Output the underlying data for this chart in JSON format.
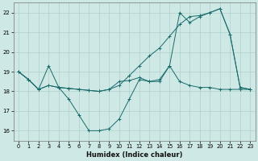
{
  "xlabel": "Humidex (Indice chaleur)",
  "xlim": [
    -0.5,
    23.5
  ],
  "ylim": [
    15.5,
    22.5
  ],
  "yticks": [
    16,
    17,
    18,
    19,
    20,
    21,
    22
  ],
  "xticks": [
    0,
    1,
    2,
    3,
    4,
    5,
    6,
    7,
    8,
    9,
    10,
    11,
    12,
    13,
    14,
    15,
    16,
    17,
    18,
    19,
    20,
    21,
    22,
    23
  ],
  "bg_color": "#cde8e5",
  "grid_color": "#b0d0cc",
  "line_color": "#1a6b6b",
  "line1_x": [
    0,
    1,
    2,
    3,
    4,
    5,
    6,
    7,
    8,
    9,
    10,
    11,
    12,
    13,
    14,
    15,
    16,
    17,
    18,
    19,
    20,
    21,
    22,
    23
  ],
  "line1_y": [
    19.0,
    18.6,
    18.1,
    19.3,
    18.2,
    17.6,
    16.8,
    16.0,
    16.0,
    16.1,
    16.6,
    17.6,
    18.6,
    18.5,
    18.5,
    19.3,
    18.5,
    18.3,
    18.2,
    18.2,
    18.1,
    18.1,
    18.1,
    18.1
  ],
  "line2_x": [
    0,
    1,
    2,
    3,
    4,
    5,
    6,
    7,
    8,
    9,
    10,
    11,
    12,
    13,
    14,
    15,
    16,
    17,
    18,
    19,
    20,
    21,
    22,
    23
  ],
  "line2_y": [
    19.0,
    18.6,
    18.1,
    18.3,
    18.2,
    18.15,
    18.1,
    18.05,
    18.0,
    18.1,
    18.3,
    18.8,
    19.3,
    19.8,
    20.2,
    20.8,
    21.4,
    21.8,
    21.85,
    22.0,
    22.2,
    20.9,
    18.2,
    18.1
  ],
  "line3_x": [
    0,
    1,
    2,
    3,
    4,
    5,
    6,
    7,
    8,
    9,
    10,
    11,
    12,
    13,
    14,
    15,
    16,
    17,
    18,
    19,
    20,
    21,
    22,
    23
  ],
  "line3_y": [
    19.0,
    18.6,
    18.1,
    18.3,
    18.2,
    18.15,
    18.1,
    18.05,
    18.0,
    18.1,
    18.5,
    18.55,
    18.7,
    18.5,
    18.6,
    19.3,
    22.0,
    21.5,
    21.8,
    22.0,
    22.2,
    20.9,
    18.2,
    18.1
  ]
}
